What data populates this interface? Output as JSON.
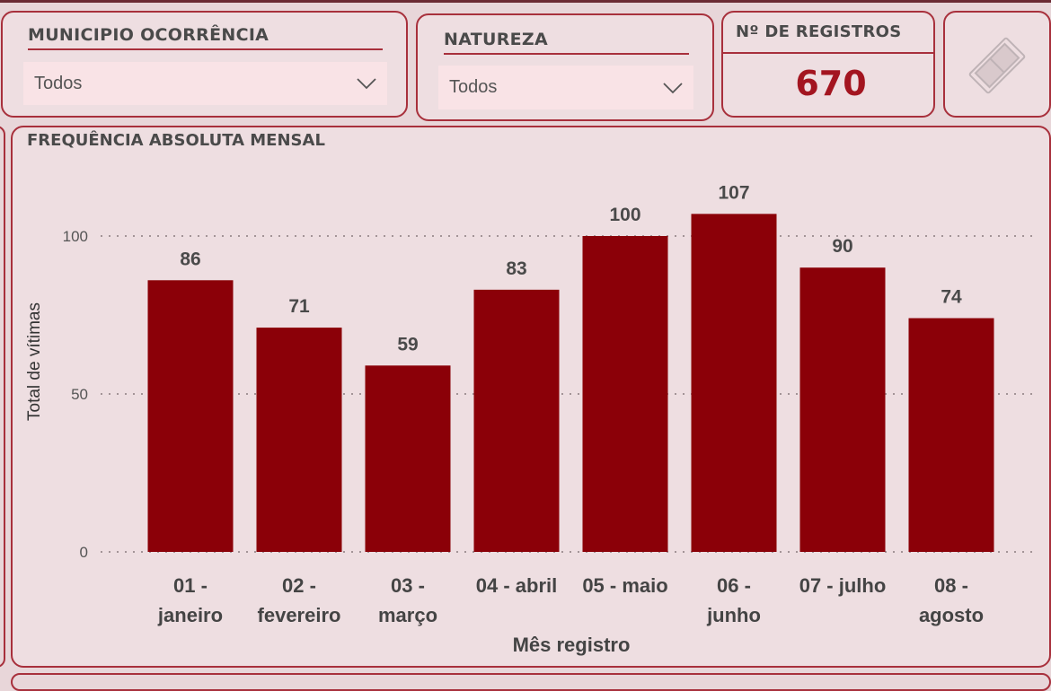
{
  "filters": {
    "municipio": {
      "title": "MUNICIPIO OCORRÊNCIA",
      "value": "Todos"
    },
    "natureza": {
      "title": "NATUREZA",
      "value": "Todos"
    }
  },
  "registros": {
    "title": "Nº DE REGISTROS",
    "value": "670"
  },
  "icons": {
    "eraser": "eraser-icon",
    "chevron": "chevron-down-icon"
  },
  "colors": {
    "accent": "#a8303c",
    "bar": "#8b0008",
    "count": "#a31520"
  },
  "chart_data": {
    "type": "bar",
    "title": "FREQUÊNCIA ABSOLUTA MENSAL",
    "xlabel": "Mês registro",
    "ylabel": "Total de vítimas",
    "ylim": [
      0,
      110
    ],
    "yticks": [
      0,
      50,
      100
    ],
    "grid": true,
    "categories": [
      [
        "01 -",
        "janeiro"
      ],
      [
        "02 -",
        "fevereiro"
      ],
      [
        "03 -",
        "março"
      ],
      [
        "04 - abril"
      ],
      [
        "05 - maio"
      ],
      [
        "06 -",
        "junho"
      ],
      [
        "07 - julho"
      ],
      [
        "08 -",
        "agosto"
      ]
    ],
    "values": [
      86,
      71,
      59,
      83,
      100,
      107,
      90,
      74
    ]
  }
}
